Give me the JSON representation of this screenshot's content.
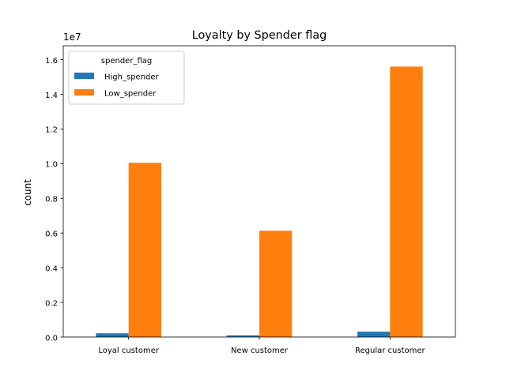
{
  "chart_data": {
    "type": "bar",
    "title": "Loyalty by Spender flag",
    "xlabel": "",
    "ylabel": "count",
    "y_offset_text": "1e7",
    "y_scale": 10000000,
    "categories": [
      "Loyal customer",
      "New customer",
      "Regular customer"
    ],
    "series": [
      {
        "name": "High_spender",
        "color": "#1f77b4",
        "values": [
          215000,
          95000,
          305000
        ]
      },
      {
        "name": "Low_spender",
        "color": "#ff7f0e",
        "values": [
          10050000,
          6130000,
          15600000
        ]
      }
    ],
    "ylim": [
      0,
      16800000
    ],
    "yticks": [
      0,
      2000000,
      4000000,
      6000000,
      8000000,
      10000000,
      12000000,
      14000000,
      16000000
    ],
    "ytick_labels": [
      "0.0",
      "0.2",
      "0.4",
      "0.6",
      "0.8",
      "1.0",
      "1.2",
      "1.4",
      "1.6"
    ],
    "legend": {
      "title": "spender_flag",
      "placement": "upper-left"
    },
    "grid": false
  }
}
